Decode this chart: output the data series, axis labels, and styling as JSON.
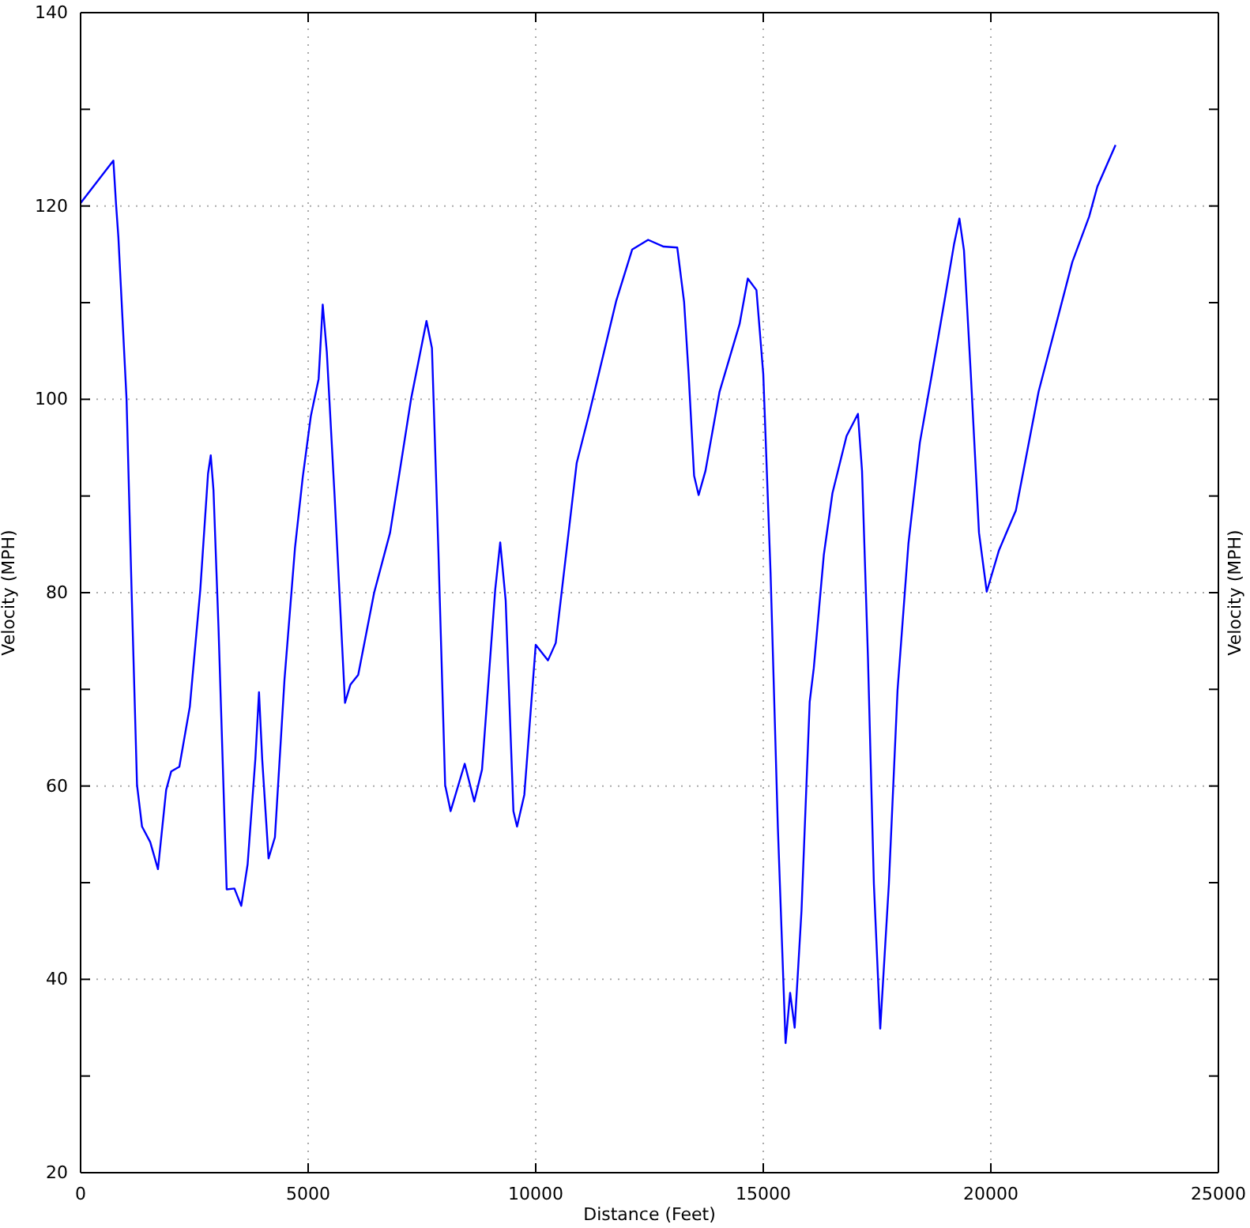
{
  "chart_data": {
    "type": "line",
    "xlabel": "Distance (Feet)",
    "ylabel": "Velocity (MPH)",
    "y2label": "Velocity (MPH)",
    "xlim": [
      0,
      25000
    ],
    "xticks": [
      0,
      5000,
      10000,
      15000,
      20000,
      25000
    ],
    "ylim": [
      20,
      140
    ],
    "yticks": [
      20,
      {
        "value": 30,
        "label": null
      },
      40,
      {
        "value": 50,
        "label": null
      },
      60,
      {
        "value": 70,
        "label": null
      },
      80,
      {
        "value": 90,
        "label": null
      },
      100,
      {
        "value": 110,
        "label": null
      },
      120,
      {
        "value": 130,
        "label": null
      },
      140
    ],
    "grid": true,
    "line_style": "solid",
    "series": [
      {
        "color": "#0000ff",
        "x": [
          0,
          720,
          780,
          830,
          1010,
          1120,
          1240,
          1350,
          1530,
          1700,
          1880,
          1990,
          2170,
          2400,
          2630,
          2800,
          2860,
          2920,
          3030,
          3210,
          3380,
          3530,
          3670,
          3840,
          3920,
          3990,
          4130,
          4270,
          4480,
          4710,
          4880,
          5060,
          5230,
          5320,
          5410,
          5580,
          5810,
          5930,
          6100,
          6450,
          6800,
          7260,
          7600,
          7720,
          7860,
          8010,
          8130,
          8440,
          8650,
          8820,
          9110,
          9220,
          9340,
          9510,
          9590,
          9750,
          10000,
          10270,
          10440,
          10900,
          11190,
          11770,
          12120,
          12470,
          12810,
          13110,
          13260,
          13360,
          13480,
          13580,
          13730,
          14040,
          14480,
          14660,
          14850,
          15000,
          15160,
          15320,
          15490,
          15590,
          15690,
          15840,
          16020,
          16110,
          16330,
          16520,
          16830,
          17080,
          17170,
          17300,
          17430,
          17570,
          17760,
          17950,
          18190,
          18440,
          18690,
          19000,
          19190,
          19310,
          19410,
          19560,
          19740,
          19910,
          20180,
          20550,
          21050,
          21790,
          22160,
          22340,
          22740
        ],
        "values": [
          120.3,
          124.7,
          120.1,
          116.8,
          100,
          80.3,
          60.1,
          55.8,
          54.2,
          51.4,
          59.6,
          61.5,
          62,
          68.2,
          80.3,
          92.3,
          94.2,
          90.6,
          76.4,
          49.3,
          49.4,
          47.6,
          51.9,
          62.8,
          69.7,
          62.8,
          52.5,
          54.7,
          71,
          84.6,
          91.9,
          98.3,
          102.1,
          109.8,
          104.9,
          90.1,
          68.6,
          70.5,
          71.5,
          80,
          86.2,
          100,
          108.1,
          105.3,
          84.6,
          60.1,
          57.4,
          62.3,
          58.4,
          61.7,
          80.3,
          85.2,
          79.2,
          57.4,
          55.8,
          59.1,
          74.6,
          73,
          74.8,
          93.4,
          98.8,
          110.2,
          115.5,
          116.5,
          115.8,
          115.7,
          110.1,
          102.6,
          92.1,
          90.1,
          92.6,
          100.8,
          107.8,
          112.5,
          111.3,
          102.6,
          82.1,
          55.8,
          33.4,
          38.6,
          35,
          47.1,
          68.7,
          72.2,
          83.9,
          90.3,
          96.2,
          98.5,
          92.6,
          73.3,
          49.9,
          34.9,
          49.9,
          69.9,
          85.1,
          95.5,
          102.2,
          110.7,
          116,
          118.7,
          115.4,
          102.6,
          86.2,
          80.1,
          84.4,
          88.5,
          100.8,
          114.2,
          118.9,
          122,
          126.3
        ]
      }
    ]
  }
}
